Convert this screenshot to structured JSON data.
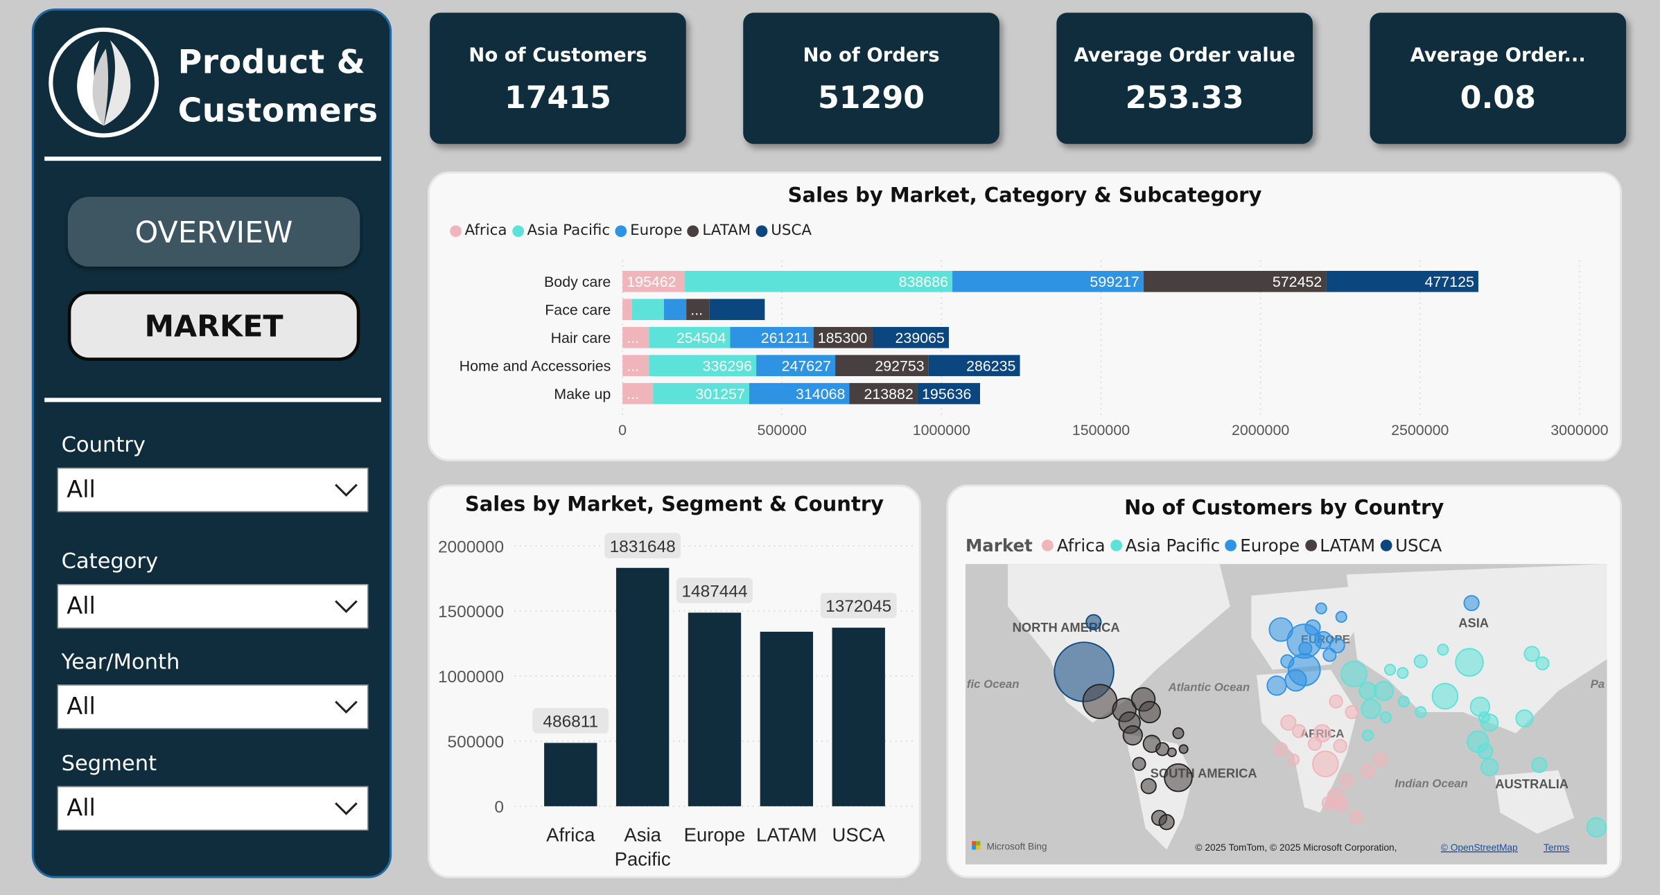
{
  "sidebar": {
    "title_line1": "Product &",
    "title_line2": "Customers",
    "nav": [
      {
        "label": "OVERVIEW",
        "active": false
      },
      {
        "label": "MARKET",
        "active": true
      }
    ],
    "filters": [
      {
        "label": "Country",
        "value": "All"
      },
      {
        "label": "Category",
        "value": "All"
      },
      {
        "label": "Year/Month",
        "value": "All"
      },
      {
        "label": "Segment",
        "value": "All"
      }
    ]
  },
  "kpis": [
    {
      "title": "No of Customers",
      "value": "17415"
    },
    {
      "title": "No of Orders",
      "value": "51290"
    },
    {
      "title": "Average Order value",
      "value": "253.33"
    },
    {
      "title": "Average Order...",
      "value": "0.08"
    }
  ],
  "markets": [
    {
      "name": "Africa",
      "color": "#f0b5ba"
    },
    {
      "name": "Asia Pacific",
      "color": "#5ce2d8"
    },
    {
      "name": "Europe",
      "color": "#2f93e4"
    },
    {
      "name": "LATAM",
      "color": "#483f40"
    },
    {
      "name": "USCA",
      "color": "#0c467e"
    }
  ],
  "map_legend_title": "Market",
  "chart_data": [
    {
      "type": "bar",
      "orientation": "horizontal-stacked",
      "title": "Sales by Market, Category & Subcategory",
      "categories": [
        "Body care",
        "Face care",
        "Hair care",
        "Home and Accessories",
        "Make up"
      ],
      "series": [
        {
          "name": "Africa",
          "values": [
            195462,
            30000,
            83000,
            83000,
            96000
          ]
        },
        {
          "name": "Asia Pacific",
          "values": [
            838686,
            100000,
            254504,
            336296,
            301257
          ]
        },
        {
          "name": "Europe",
          "values": [
            599217,
            70000,
            261211,
            247627,
            314068
          ]
        },
        {
          "name": "LATAM",
          "values": [
            572452,
            73000,
            185300,
            292753,
            213882
          ]
        },
        {
          "name": "USCA",
          "values": [
            477125,
            173000,
            239065,
            286235,
            195636
          ]
        }
      ],
      "xlim": [
        0,
        3000000
      ],
      "xticks": [
        "0",
        "500000",
        "1000000",
        "1500000",
        "2000000",
        "2500000",
        "3000000"
      ],
      "legend": "top-left",
      "grid": true
    },
    {
      "type": "bar",
      "title": "Sales by Market, Segment & Country",
      "categories": [
        "Africa",
        "Asia Pacific",
        "Europe",
        "LATAM",
        "USCA"
      ],
      "category_labels": [
        [
          "Africa"
        ],
        [
          "Asia",
          "Pacific"
        ],
        [
          "Europe"
        ],
        [
          "LATAM"
        ],
        [
          "USCA"
        ]
      ],
      "values": [
        486811,
        1831648,
        1487444,
        1341000,
        1372045
      ],
      "data_labels": [
        "486811",
        "1831648",
        "1487444",
        null,
        "1372045"
      ],
      "ylim": [
        0,
        2000000
      ],
      "yticks": [
        "0",
        "500000",
        "1000000",
        "1500000",
        "2000000"
      ],
      "grid": true,
      "color": "#0f2d3d"
    }
  ],
  "map": {
    "title": "No of Customers by Country",
    "labels": [
      "NORTH AMERICA",
      "SOUTH AMERICA",
      "EUROPE",
      "AFRICA",
      "ASIA",
      "AUSTRALIA",
      "Atlantic Ocean",
      "Indian Ocean",
      "fic Ocean",
      "Pa"
    ],
    "bing": "Microsoft Bing",
    "attribution": "© 2025 TomTom, © 2025 Microsoft Corporation,",
    "osm_link": "© OpenStreetMap",
    "terms_link": "Terms"
  }
}
